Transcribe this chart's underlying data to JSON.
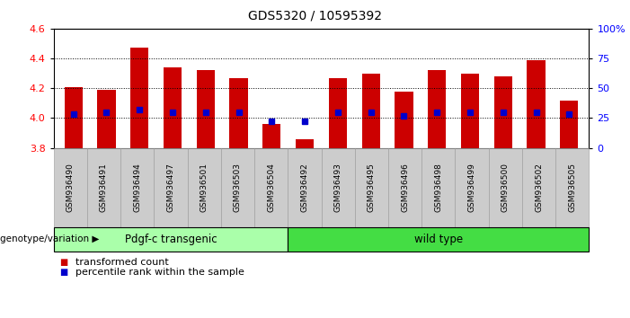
{
  "title": "GDS5320 / 10595392",
  "samples": [
    "GSM936490",
    "GSM936491",
    "GSM936494",
    "GSM936497",
    "GSM936501",
    "GSM936503",
    "GSM936504",
    "GSM936492",
    "GSM936493",
    "GSM936495",
    "GSM936496",
    "GSM936498",
    "GSM936499",
    "GSM936500",
    "GSM936502",
    "GSM936505"
  ],
  "bar_tops": [
    4.21,
    4.19,
    4.47,
    4.34,
    4.32,
    4.27,
    3.96,
    3.86,
    4.27,
    4.3,
    4.18,
    4.32,
    4.3,
    4.28,
    4.39,
    4.12
  ],
  "percentile_vals": [
    28,
    30,
    32,
    30,
    30,
    30,
    22,
    22,
    30,
    30,
    27,
    30,
    30,
    30,
    30,
    28
  ],
  "bar_bottom": 3.8,
  "ylim_left": [
    3.8,
    4.6
  ],
  "ylim_right": [
    0,
    100
  ],
  "yticks_left": [
    3.8,
    4.0,
    4.2,
    4.4,
    4.6
  ],
  "yticks_right": [
    0,
    25,
    50,
    75,
    100
  ],
  "bar_color": "#cc0000",
  "percentile_color": "#0000cc",
  "n_transgenic": 7,
  "n_total": 16,
  "group_labels": [
    "Pdgf-c transgenic",
    "wild type"
  ],
  "group_colors": [
    "#aaffaa",
    "#44dd44"
  ],
  "sample_box_color": "#cccccc",
  "genotype_label": "genotype/variation",
  "legend_items": [
    {
      "label": "transformed count",
      "color": "#cc0000"
    },
    {
      "label": "percentile rank within the sample",
      "color": "#0000cc"
    }
  ],
  "bar_width": 0.55,
  "tick_fontsize": 8,
  "title_fontsize": 10,
  "label_fontsize": 6.5,
  "group_fontsize": 8.5
}
